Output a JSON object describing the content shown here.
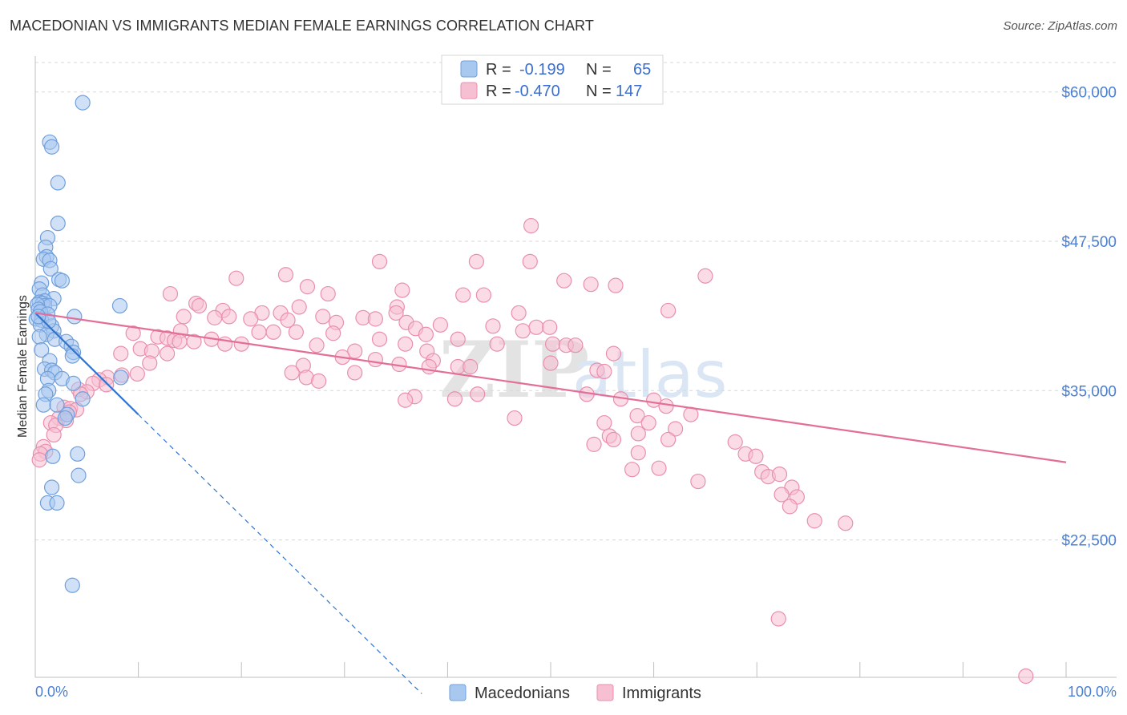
{
  "header": {
    "title": "MACEDONIAN VS IMMIGRANTS MEDIAN FEMALE EARNINGS CORRELATION CHART",
    "source": "Source: ZipAtlas.com"
  },
  "watermark": {
    "zip": "ZIP",
    "atlas": "atlas"
  },
  "legend": {
    "r_label": "R =",
    "n_label": "N =",
    "rows": [
      {
        "r": "-0.199",
        "n": "65"
      },
      {
        "r": "-0.470",
        "n": "147"
      }
    ]
  },
  "colors": {
    "blue_fill": "#a9c8f0",
    "blue_stroke": "#6f9fdc",
    "blue_line": "#2f74d0",
    "pink_fill": "#f7c0d2",
    "pink_stroke": "#e98fae",
    "pink_line": "#e36e98",
    "grid": "#d8d8d8",
    "tick_text": "#4a7fd4"
  },
  "chart_data": {
    "type": "scatter",
    "title": "MACEDONIAN VS IMMIGRANTS MEDIAN FEMALE EARNINGS CORRELATION CHART",
    "xlabel": "",
    "ylabel": "Median Female Earnings",
    "xlim": [
      0,
      100
    ],
    "ylim": [
      11000,
      63000
    ],
    "x_tick_labels": [
      "0.0%",
      "100.0%"
    ],
    "y_ticks": [
      {
        "value": 22500,
        "label": "$22,500"
      },
      {
        "value": 35000,
        "label": "$35,000"
      },
      {
        "value": 47500,
        "label": "$47,500"
      },
      {
        "value": 60000,
        "label": "$60,000"
      }
    ],
    "grid": true,
    "series": [
      {
        "name": "Macedonians",
        "r": -0.199,
        "n": 65,
        "trend": {
          "x0": 0,
          "y0": 41500,
          "x1": 10,
          "y1": 33000,
          "dash_to_x": 37.5
        },
        "points": [
          [
            4.6,
            59100
          ],
          [
            1.4,
            55800
          ],
          [
            1.6,
            55400
          ],
          [
            2.2,
            52400
          ],
          [
            2.2,
            49000
          ],
          [
            1.2,
            47800
          ],
          [
            1.0,
            47000
          ],
          [
            1.1,
            46200
          ],
          [
            0.8,
            46000
          ],
          [
            1.4,
            45900
          ],
          [
            1.5,
            45200
          ],
          [
            2.3,
            44300
          ],
          [
            2.6,
            44200
          ],
          [
            0.6,
            44000
          ],
          [
            0.4,
            43500
          ],
          [
            0.7,
            43000
          ],
          [
            1.8,
            42700
          ],
          [
            0.9,
            42500
          ],
          [
            0.4,
            42400
          ],
          [
            0.7,
            42300
          ],
          [
            0.9,
            42100
          ],
          [
            1.4,
            42100
          ],
          [
            0.2,
            42200
          ],
          [
            8.2,
            42100
          ],
          [
            0.3,
            41800
          ],
          [
            0.5,
            41600
          ],
          [
            1.2,
            41400
          ],
          [
            3.8,
            41200
          ],
          [
            0.1,
            41000
          ],
          [
            0.6,
            40900
          ],
          [
            0.5,
            40500
          ],
          [
            1.6,
            40400
          ],
          [
            1.8,
            40000
          ],
          [
            1.1,
            39700
          ],
          [
            0.4,
            39500
          ],
          [
            1.9,
            39300
          ],
          [
            3.0,
            39100
          ],
          [
            3.5,
            38700
          ],
          [
            3.7,
            38200
          ],
          [
            3.6,
            37900
          ],
          [
            0.6,
            38400
          ],
          [
            1.4,
            37500
          ],
          [
            0.9,
            36800
          ],
          [
            1.6,
            36700
          ],
          [
            1.9,
            36500
          ],
          [
            1.2,
            36000
          ],
          [
            2.6,
            36000
          ],
          [
            8.3,
            36100
          ],
          [
            3.7,
            35600
          ],
          [
            1.3,
            35000
          ],
          [
            1.0,
            34700
          ],
          [
            4.6,
            34300
          ],
          [
            0.8,
            33800
          ],
          [
            2.1,
            33800
          ],
          [
            3.1,
            33000
          ],
          [
            2.9,
            32700
          ],
          [
            1.7,
            29500
          ],
          [
            4.1,
            29700
          ],
          [
            4.2,
            27900
          ],
          [
            1.6,
            26900
          ],
          [
            1.2,
            25600
          ],
          [
            2.1,
            25600
          ],
          [
            3.6,
            18700
          ],
          [
            1.3,
            40800
          ],
          [
            0.3,
            41200
          ]
        ]
      },
      {
        "name": "Immigrants",
        "r": -0.47,
        "n": 147,
        "trend": {
          "x0": 0,
          "y0": 41500,
          "x1": 100,
          "y1": 29000
        },
        "points": [
          [
            48.1,
            48800
          ],
          [
            33.4,
            45800
          ],
          [
            42.8,
            45800
          ],
          [
            48.0,
            45800
          ],
          [
            19.5,
            44400
          ],
          [
            24.3,
            44700
          ],
          [
            65.0,
            44600
          ],
          [
            51.3,
            44200
          ],
          [
            53.9,
            43900
          ],
          [
            56.3,
            43800
          ],
          [
            35.6,
            43400
          ],
          [
            26.4,
            43700
          ],
          [
            13.1,
            43100
          ],
          [
            28.4,
            43100
          ],
          [
            41.5,
            43000
          ],
          [
            43.5,
            43000
          ],
          [
            25.6,
            42000
          ],
          [
            35.1,
            42000
          ],
          [
            15.6,
            42300
          ],
          [
            15.9,
            42100
          ],
          [
            61.4,
            41700
          ],
          [
            18.2,
            41700
          ],
          [
            22.0,
            41500
          ],
          [
            23.8,
            41500
          ],
          [
            35.0,
            41500
          ],
          [
            14.4,
            41200
          ],
          [
            18.8,
            41200
          ],
          [
            27.9,
            41200
          ],
          [
            46.9,
            41500
          ],
          [
            17.4,
            41100
          ],
          [
            20.9,
            41000
          ],
          [
            31.8,
            41100
          ],
          [
            33.0,
            41000
          ],
          [
            24.5,
            40900
          ],
          [
            29.2,
            40700
          ],
          [
            36.0,
            40700
          ],
          [
            39.3,
            40500
          ],
          [
            44.4,
            40400
          ],
          [
            48.6,
            40300
          ],
          [
            49.9,
            40300
          ],
          [
            36.9,
            40200
          ],
          [
            14.1,
            40000
          ],
          [
            47.3,
            40000
          ],
          [
            21.7,
            39900
          ],
          [
            23.1,
            39900
          ],
          [
            25.3,
            39900
          ],
          [
            28.9,
            39800
          ],
          [
            37.9,
            39700
          ],
          [
            9.5,
            39800
          ],
          [
            11.9,
            39500
          ],
          [
            12.8,
            39400
          ],
          [
            17.1,
            39300
          ],
          [
            33.4,
            39300
          ],
          [
            41.0,
            39300
          ],
          [
            13.5,
            39200
          ],
          [
            14.0,
            39100
          ],
          [
            15.4,
            39100
          ],
          [
            18.4,
            38900
          ],
          [
            20.0,
            38900
          ],
          [
            27.3,
            38800
          ],
          [
            35.9,
            38900
          ],
          [
            44.8,
            38900
          ],
          [
            50.2,
            38900
          ],
          [
            51.5,
            38800
          ],
          [
            52.4,
            38800
          ],
          [
            10.2,
            38500
          ],
          [
            11.3,
            38300
          ],
          [
            31.0,
            38300
          ],
          [
            38.0,
            38300
          ],
          [
            56.1,
            38100
          ],
          [
            8.3,
            38100
          ],
          [
            12.8,
            38100
          ],
          [
            29.8,
            37800
          ],
          [
            33.0,
            37600
          ],
          [
            38.6,
            37500
          ],
          [
            50.0,
            37300
          ],
          [
            11.1,
            37300
          ],
          [
            26.0,
            37100
          ],
          [
            35.3,
            37200
          ],
          [
            38.2,
            37000
          ],
          [
            41.0,
            37000
          ],
          [
            42.2,
            37000
          ],
          [
            54.5,
            36700
          ],
          [
            55.2,
            36600
          ],
          [
            24.9,
            36500
          ],
          [
            31.0,
            36500
          ],
          [
            9.9,
            36400
          ],
          [
            8.4,
            36300
          ],
          [
            7.0,
            36100
          ],
          [
            6.2,
            35900
          ],
          [
            26.3,
            36100
          ],
          [
            27.5,
            35800
          ],
          [
            5.6,
            35600
          ],
          [
            6.9,
            35500
          ],
          [
            4.2,
            35100
          ],
          [
            5.0,
            34900
          ],
          [
            4.4,
            34700
          ],
          [
            42.9,
            34700
          ],
          [
            53.5,
            34700
          ],
          [
            36.8,
            34500
          ],
          [
            40.7,
            34300
          ],
          [
            35.9,
            34200
          ],
          [
            56.8,
            34300
          ],
          [
            60.0,
            34200
          ],
          [
            61.2,
            33700
          ],
          [
            2.8,
            33600
          ],
          [
            3.4,
            33500
          ],
          [
            4.0,
            33400
          ],
          [
            3.3,
            33200
          ],
          [
            2.3,
            32700
          ],
          [
            46.5,
            32700
          ],
          [
            63.6,
            33000
          ],
          [
            3.0,
            32500
          ],
          [
            58.4,
            32900
          ],
          [
            1.5,
            32300
          ],
          [
            2.0,
            32100
          ],
          [
            59.5,
            32300
          ],
          [
            55.2,
            32300
          ],
          [
            62.1,
            31800
          ],
          [
            58.5,
            31400
          ],
          [
            1.8,
            31300
          ],
          [
            55.7,
            31200
          ],
          [
            56.1,
            30900
          ],
          [
            61.4,
            30900
          ],
          [
            67.9,
            30700
          ],
          [
            54.2,
            30500
          ],
          [
            0.8,
            30300
          ],
          [
            1.0,
            29900
          ],
          [
            0.5,
            29700
          ],
          [
            58.5,
            29800
          ],
          [
            68.9,
            29700
          ],
          [
            69.9,
            29500
          ],
          [
            0.4,
            29200
          ],
          [
            70.5,
            28200
          ],
          [
            71.1,
            27800
          ],
          [
            72.2,
            28000
          ],
          [
            57.9,
            28400
          ],
          [
            60.5,
            28500
          ],
          [
            64.3,
            27400
          ],
          [
            73.4,
            26900
          ],
          [
            72.4,
            26300
          ],
          [
            73.9,
            26100
          ],
          [
            75.6,
            24100
          ],
          [
            73.2,
            25300
          ],
          [
            78.6,
            23900
          ],
          [
            72.1,
            15900
          ],
          [
            96.1,
            11100
          ]
        ]
      }
    ]
  }
}
